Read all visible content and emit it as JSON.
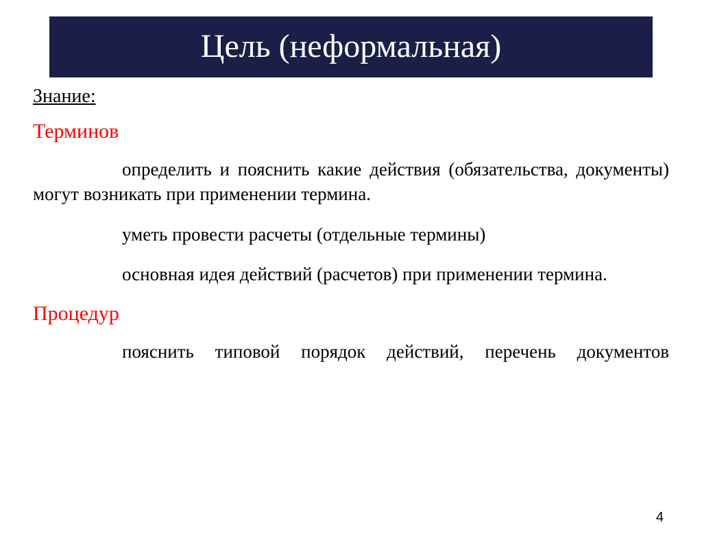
{
  "title": "Цель (неформальная)",
  "heading": "Знание:",
  "section1": {
    "label": "Терминов",
    "p1": "определить и пояснить какие действия (обязательства, документы) могут возникать при применении термина.",
    "p2": "уметь провести расчеты  (отдельные термины)",
    "p3": "основная идея действий (расчетов)  при применении термина."
  },
  "section2": {
    "label": "Процедур",
    "p1": "пояснить типовой порядок действий, перечень документов"
  },
  "pageNumber": "4",
  "colors": {
    "titleBg": "#1a1f47",
    "titleText": "#ffffff",
    "bodyText": "#000000",
    "accent": "#ff0000",
    "background": "#ffffff"
  }
}
